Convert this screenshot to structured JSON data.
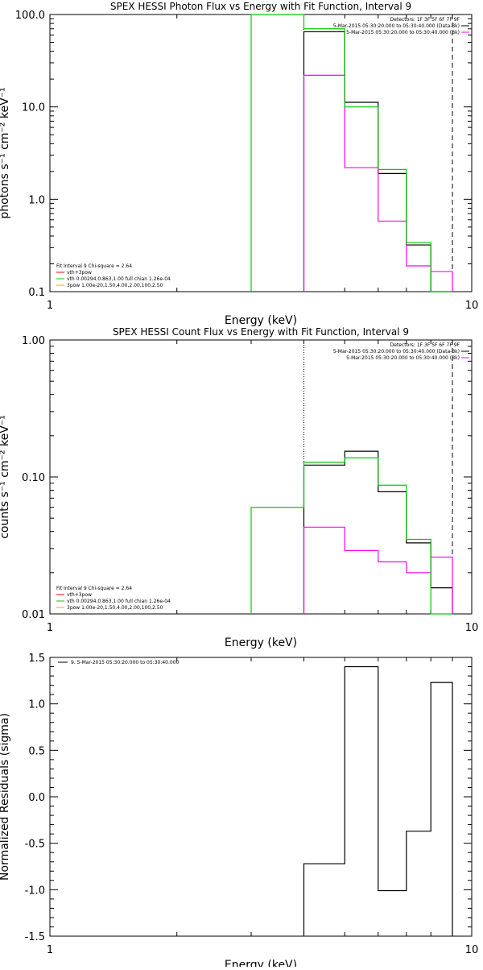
{
  "chart_data": [
    {
      "type": "line",
      "title": "SPEX HESSI Photon Flux vs Energy with Fit Function, Interval 9",
      "xlabel": "Energy (keV)",
      "ylabel": "photons s⁻¹ cm⁻² keV⁻¹",
      "xscale": "log",
      "yscale": "log",
      "xlim": [
        1,
        10
      ],
      "ylim": [
        0.1,
        100
      ],
      "xticks": [
        "1",
        "10"
      ],
      "yticks": [
        "0.1",
        "1.0",
        "10.0",
        "100.0"
      ],
      "grid": false,
      "legend_top": [
        "Detectors: 1F 3F 5F 6F 7F 9F",
        "5-Mar-2015 05:30:20.000 to 05:30:40.000 (Data-Bk)",
        "5-Mar-2015 05:30:20.000 to 05:30:40.000 (Bk)"
      ],
      "legend_top_colors": [
        "",
        "#000000",
        "#ff00ff"
      ],
      "legend_bottom": [
        "Fit Interval 9   Chi-square = 2.64",
        "vth+3pow",
        "vth 0.00294,0.863,1.00  full chian 1.26e-04",
        "3pow 1.00e-20,1.50,4.00,2.00,100,2.50"
      ],
      "legend_bottom_colors": [
        "",
        "#ff0000",
        "#00cc00",
        "#ffa500"
      ],
      "vlines": [
        {
          "x": 4.0,
          "color": "#000000",
          "style": "dotted"
        },
        {
          "x": 9.0,
          "color": "#000000",
          "style": "dashed"
        }
      ],
      "series": [
        {
          "color": "#000000",
          "edges": [
            3.0,
            4.0,
            5.0,
            6.0,
            7.0,
            8.0,
            9.0
          ],
          "values": [
            null,
            65,
            11.2,
            1.9,
            0.32,
            0.095
          ]
        },
        {
          "color": "#ff00ff",
          "edges": [
            3.0,
            4.0,
            5.0,
            6.0,
            7.0,
            8.0,
            9.0
          ],
          "values": [
            null,
            22,
            2.2,
            0.58,
            0.19,
            0.165
          ]
        },
        {
          "color": "#00cc00",
          "edges": [
            3.0,
            4.0,
            5.0,
            6.0,
            7.0,
            8.0,
            9.0
          ],
          "values": [
            150,
            70,
            10,
            2.1,
            0.34,
            0.095
          ]
        }
      ]
    },
    {
      "type": "line",
      "title": "SPEX HESSI Count Flux vs Energy with Fit Function, Interval 9",
      "xlabel": "Energy (keV)",
      "ylabel": "counts s⁻¹ cm⁻² keV⁻¹",
      "xscale": "log",
      "yscale": "log",
      "xlim": [
        1,
        10
      ],
      "ylim": [
        0.01,
        1.0
      ],
      "xticks": [
        "1",
        "10"
      ],
      "yticks": [
        "0.01",
        "0.10",
        "1.00"
      ],
      "grid": false,
      "legend_top": [
        "Detectors: 1F 3F 5F 6F 7F 9F",
        "5-Mar-2015 05:30:20.000 to 05:30:40.000 (Data-Bk)",
        "5-Mar-2015 05:30:20.000 to 05:30:40.000 (Bk)"
      ],
      "legend_top_colors": [
        "",
        "#000000",
        "#ff00ff"
      ],
      "legend_bottom": [
        "Fit Interval 9   Chi-square = 2.64",
        "vth+3pow",
        "vth 0.00294,0.863,1.00  full chian 1.26e-04",
        "3pow 1.00e-20,1.50,4.00,2.00,100,2.50"
      ],
      "legend_bottom_colors": [
        "",
        "#ff0000",
        "#00cc00",
        "#ffa500"
      ],
      "vlines": [
        {
          "x": 4.0,
          "color": "#000000",
          "style": "dotted"
        },
        {
          "x": 9.0,
          "color": "#000000",
          "style": "dashed"
        }
      ],
      "series": [
        {
          "color": "#000000",
          "edges": [
            3.0,
            4.0,
            5.0,
            6.0,
            7.0,
            8.0,
            9.0
          ],
          "values": [
            null,
            0.122,
            0.154,
            0.078,
            0.033,
            0.0155
          ]
        },
        {
          "color": "#ff00ff",
          "edges": [
            3.0,
            4.0,
            5.0,
            6.0,
            7.0,
            8.0,
            9.0
          ],
          "values": [
            null,
            0.043,
            0.029,
            0.024,
            0.02,
            0.026
          ]
        },
        {
          "color": "#00cc00",
          "edges": [
            3.0,
            4.0,
            5.0,
            6.0,
            7.0,
            8.0,
            9.0
          ],
          "values": [
            0.06,
            0.128,
            0.138,
            0.087,
            0.035,
            0.01
          ]
        }
      ]
    },
    {
      "type": "line",
      "title": "",
      "xlabel": "Energy (keV)",
      "ylabel": "Normalized Residuals (sigma)",
      "xscale": "log",
      "yscale": "linear",
      "xlim": [
        1,
        10
      ],
      "ylim": [
        -1.5,
        1.5
      ],
      "xticks": [
        "1",
        "10"
      ],
      "yticks": [
        "-1.5",
        "-1.0",
        "-0.5",
        "0.0",
        "0.5",
        "1.0",
        "1.5"
      ],
      "grid": false,
      "legend_top": [
        "9.  5-Mar-2015 05:30:20.000 to 05:30:40.000"
      ],
      "legend_top_colors": [
        "#000000"
      ],
      "series": [
        {
          "color": "#000000",
          "edges": [
            4.0,
            5.0,
            6.0,
            7.0,
            8.0,
            9.0
          ],
          "values": [
            -0.72,
            1.4,
            -1.01,
            -0.37,
            1.23
          ],
          "base": -1.5
        }
      ]
    }
  ]
}
